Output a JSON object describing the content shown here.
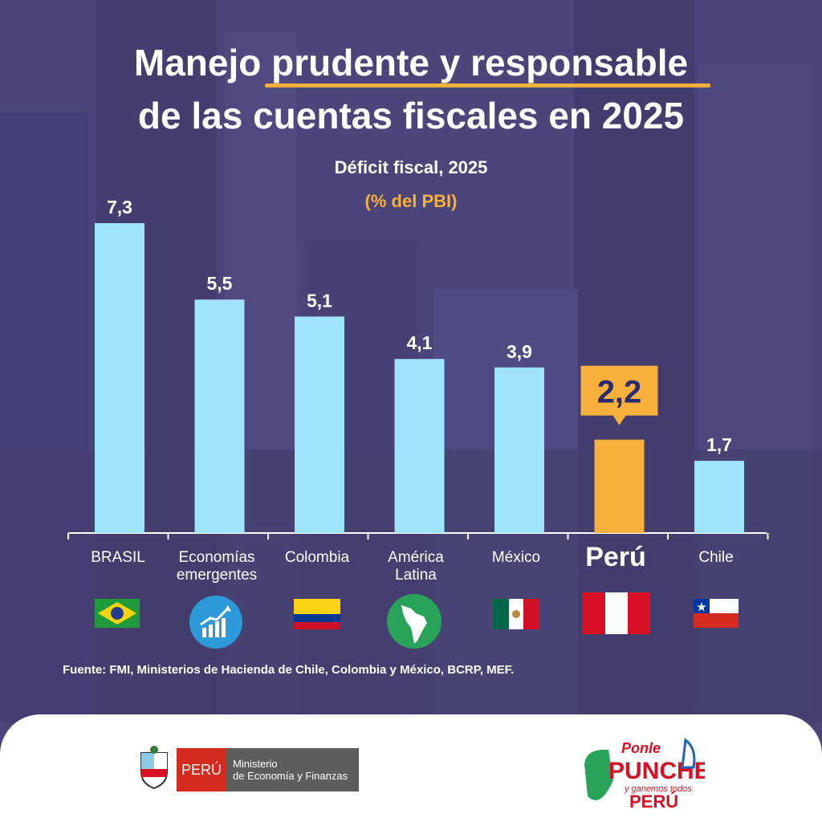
{
  "title": {
    "line1": "Manejo prudente y responsable",
    "line2": "de las cuentas fiscales en 2025"
  },
  "chart_data": {
    "type": "bar",
    "title": "Déficit fiscal, 2025",
    "subtitle": "(% del PBI)",
    "categories": [
      "BRASIL",
      "Economías emergentes",
      "Colombia",
      "América Latina",
      "México",
      "Perú",
      "Chile"
    ],
    "values": [
      7.3,
      5.5,
      5.1,
      4.1,
      3.9,
      2.2,
      1.7
    ],
    "value_labels": [
      "7,3",
      "5,5",
      "5,1",
      "4,1",
      "3,9",
      "2,2",
      "1,7"
    ],
    "highlight": "Perú",
    "colors": {
      "bar": "#9ee4fc",
      "highlight": "#f7b03c",
      "highlight_text": "#2a2a6e"
    },
    "ylim": [
      0,
      7.3
    ],
    "grid": false
  },
  "labels": {
    "brasil": "BRASIL",
    "emergentes_1": "Economías",
    "emergentes_2": "emergentes",
    "colombia": "Colombia",
    "america_1": "América",
    "america_2": "Latina",
    "mexico": "México",
    "peru": "Perú",
    "chile": "Chile"
  },
  "source": "Fuente: FMI, Ministerios de Hacienda de Chile, Colombia y México, BCRP, MEF.",
  "footer": {
    "peru_label": "PERÚ",
    "ministry_line1": "Ministerio",
    "ministry_line2": "de Economía y Finanzas",
    "campaign_logo": "Ponle Punche y ganemos todos Perú"
  },
  "icons": [
    "brazil-flag-icon",
    "growth-chart-icon",
    "colombia-flag-icon",
    "latin-america-map-icon",
    "mexico-flag-icon",
    "peru-flag-icon",
    "chile-flag-icon"
  ]
}
